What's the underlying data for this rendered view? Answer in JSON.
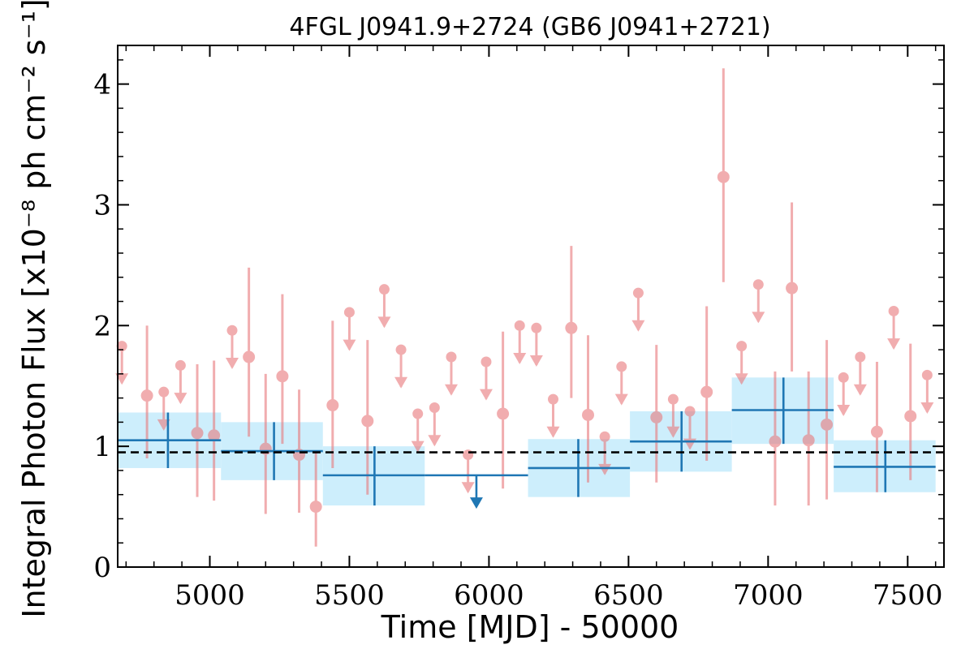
{
  "chart_data": {
    "type": "scatter",
    "title": "4FGL J0941.9+2724 (GB6 J0941+2721)",
    "xlabel": "Time [MJD] - 50000",
    "ylabel": "Integral Photon Flux [x10⁻⁸ ph cm⁻² s⁻¹]",
    "xlim": [
      4670,
      7630
    ],
    "ylim": [
      0,
      4.32
    ],
    "xticks": [
      5000,
      5500,
      6000,
      6500,
      7000,
      7500
    ],
    "yticks": [
      0,
      1,
      2,
      3,
      4
    ],
    "mean_flux": 0.95,
    "colors": {
      "short_bins": "#e8787b",
      "long_bins": "#1f77b4",
      "long_bins_band": "#cdeefc",
      "mean_line": "#000000"
    },
    "long_bins": [
      {
        "x": 4850,
        "x_lo": 4670,
        "x_hi": 5040,
        "y": 1.05,
        "y_lo": 0.82,
        "y_hi": 1.28,
        "upper_limit": false
      },
      {
        "x": 5230,
        "x_lo": 5040,
        "x_hi": 5405,
        "y": 0.96,
        "y_lo": 0.72,
        "y_hi": 1.2,
        "upper_limit": false
      },
      {
        "x": 5590,
        "x_lo": 5405,
        "x_hi": 5770,
        "y": 0.76,
        "y_lo": 0.51,
        "y_hi": 1.0,
        "upper_limit": false
      },
      {
        "x": 5955,
        "x_lo": 5770,
        "x_hi": 6140,
        "y": 0.76,
        "upper_limit": true
      },
      {
        "x": 6320,
        "x_lo": 6140,
        "x_hi": 6505,
        "y": 0.82,
        "y_lo": 0.58,
        "y_hi": 1.06,
        "upper_limit": false
      },
      {
        "x": 6690,
        "x_lo": 6505,
        "x_hi": 6870,
        "y": 1.04,
        "y_lo": 0.79,
        "y_hi": 1.29,
        "upper_limit": false
      },
      {
        "x": 7055,
        "x_lo": 6870,
        "x_hi": 7235,
        "y": 1.3,
        "y_lo": 1.02,
        "y_hi": 1.57,
        "upper_limit": false
      },
      {
        "x": 7420,
        "x_lo": 7235,
        "x_hi": 7600,
        "y": 0.83,
        "y_lo": 0.62,
        "y_hi": 1.05,
        "upper_limit": false
      }
    ],
    "short_bins": [
      {
        "x": 4685,
        "y": 1.83,
        "upper_limit": true
      },
      {
        "x": 4775,
        "y": 1.42,
        "y_lo": 0.9,
        "y_hi": 2.0,
        "upper_limit": false
      },
      {
        "x": 4835,
        "y": 1.45,
        "upper_limit": true
      },
      {
        "x": 4895,
        "y": 1.67,
        "upper_limit": true
      },
      {
        "x": 4955,
        "y": 1.11,
        "y_lo": 0.58,
        "y_hi": 1.68,
        "upper_limit": false
      },
      {
        "x": 5015,
        "y": 1.09,
        "y_lo": 0.55,
        "y_hi": 1.71,
        "upper_limit": false
      },
      {
        "x": 5080,
        "y": 1.96,
        "upper_limit": true
      },
      {
        "x": 5140,
        "y": 1.74,
        "y_lo": 1.08,
        "y_hi": 2.48,
        "upper_limit": false
      },
      {
        "x": 5200,
        "y": 0.98,
        "y_lo": 0.44,
        "y_hi": 1.6,
        "upper_limit": false
      },
      {
        "x": 5260,
        "y": 1.58,
        "y_lo": 1.02,
        "y_hi": 2.26,
        "upper_limit": false
      },
      {
        "x": 5320,
        "y": 0.93,
        "y_lo": 0.45,
        "y_hi": 1.47,
        "upper_limit": false
      },
      {
        "x": 5380,
        "y": 0.5,
        "y_lo": 0.17,
        "y_hi": 0.95,
        "upper_limit": false
      },
      {
        "x": 5440,
        "y": 1.34,
        "y_lo": 0.82,
        "y_hi": 2.04,
        "upper_limit": false
      },
      {
        "x": 5500,
        "y": 2.11,
        "upper_limit": true
      },
      {
        "x": 5565,
        "y": 1.21,
        "y_lo": 0.6,
        "y_hi": 1.88,
        "upper_limit": false
      },
      {
        "x": 5625,
        "y": 2.3,
        "upper_limit": true
      },
      {
        "x": 5685,
        "y": 1.8,
        "upper_limit": true
      },
      {
        "x": 5745,
        "y": 1.27,
        "upper_limit": true
      },
      {
        "x": 5805,
        "y": 1.32,
        "upper_limit": true
      },
      {
        "x": 5865,
        "y": 1.74,
        "upper_limit": true
      },
      {
        "x": 5925,
        "y": 0.93,
        "upper_limit": true
      },
      {
        "x": 5990,
        "y": 1.7,
        "upper_limit": true
      },
      {
        "x": 6050,
        "y": 1.27,
        "y_lo": 0.65,
        "y_hi": 1.95,
        "upper_limit": false
      },
      {
        "x": 6110,
        "y": 2.0,
        "upper_limit": true
      },
      {
        "x": 6170,
        "y": 1.98,
        "upper_limit": true
      },
      {
        "x": 6230,
        "y": 1.39,
        "upper_limit": true
      },
      {
        "x": 6295,
        "y": 1.98,
        "y_lo": 1.4,
        "y_hi": 2.66,
        "upper_limit": false
      },
      {
        "x": 6355,
        "y": 1.26,
        "y_lo": 0.7,
        "y_hi": 1.92,
        "upper_limit": false
      },
      {
        "x": 6415,
        "y": 1.08,
        "upper_limit": true
      },
      {
        "x": 6475,
        "y": 1.66,
        "upper_limit": true
      },
      {
        "x": 6535,
        "y": 2.27,
        "upper_limit": true
      },
      {
        "x": 6600,
        "y": 1.24,
        "y_lo": 0.7,
        "y_hi": 1.84,
        "upper_limit": false
      },
      {
        "x": 6660,
        "y": 1.39,
        "upper_limit": true
      },
      {
        "x": 6720,
        "y": 1.29,
        "upper_limit": true
      },
      {
        "x": 6780,
        "y": 1.45,
        "y_lo": 0.88,
        "y_hi": 2.16,
        "upper_limit": false
      },
      {
        "x": 6840,
        "y": 3.23,
        "y_lo": 2.36,
        "y_hi": 4.13,
        "upper_limit": false
      },
      {
        "x": 6905,
        "y": 1.83,
        "upper_limit": true
      },
      {
        "x": 6965,
        "y": 2.34,
        "upper_limit": true
      },
      {
        "x": 7025,
        "y": 1.04,
        "y_lo": 0.51,
        "y_hi": 1.62,
        "upper_limit": false
      },
      {
        "x": 7085,
        "y": 2.31,
        "y_lo": 1.62,
        "y_hi": 3.02,
        "upper_limit": false
      },
      {
        "x": 7145,
        "y": 1.05,
        "y_lo": 0.51,
        "y_hi": 1.62,
        "upper_limit": false
      },
      {
        "x": 7210,
        "y": 1.18,
        "y_lo": 0.56,
        "y_hi": 1.88,
        "upper_limit": false
      },
      {
        "x": 7270,
        "y": 1.57,
        "upper_limit": true
      },
      {
        "x": 7330,
        "y": 1.74,
        "upper_limit": true
      },
      {
        "x": 7390,
        "y": 1.12,
        "y_lo": 0.62,
        "y_hi": 1.7,
        "upper_limit": false
      },
      {
        "x": 7450,
        "y": 2.12,
        "upper_limit": true
      },
      {
        "x": 7510,
        "y": 1.25,
        "y_lo": 0.72,
        "y_hi": 1.85,
        "upper_limit": false
      },
      {
        "x": 7570,
        "y": 1.59,
        "upper_limit": true
      }
    ]
  }
}
